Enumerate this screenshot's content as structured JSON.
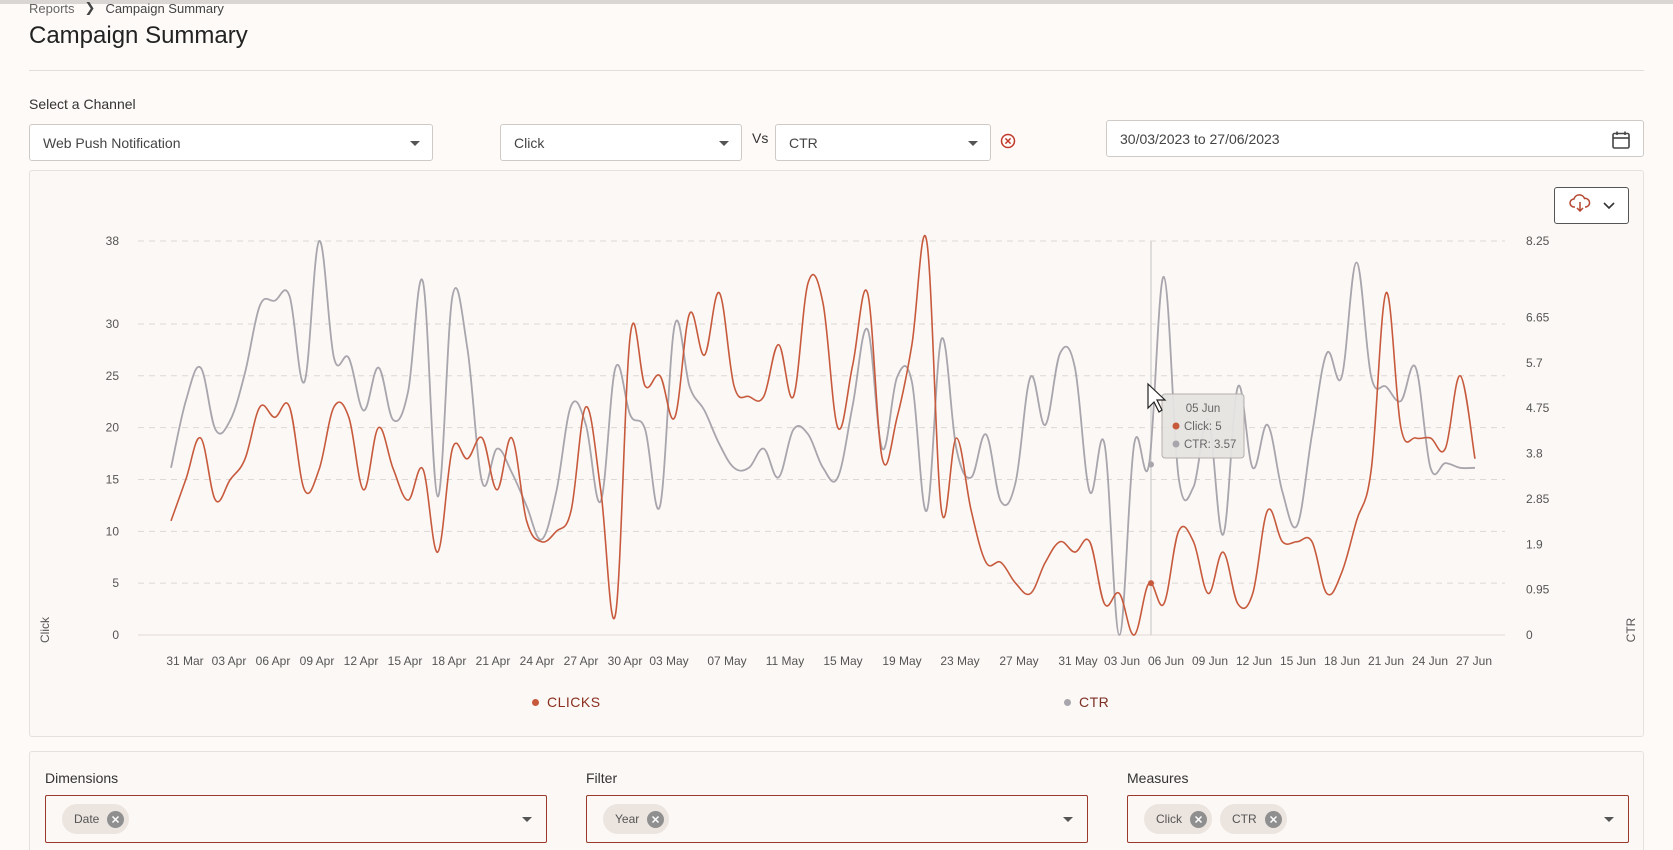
{
  "breadcrumb": {
    "parent": "Reports",
    "separator": "❯",
    "current": "Campaign Summary"
  },
  "page_title": "Campaign Summary",
  "channel": {
    "label": "Select a Channel",
    "value": "Web Push Notification"
  },
  "metric_a": {
    "value": "Click"
  },
  "vs_label": "Vs",
  "metric_b": {
    "value": "CTR"
  },
  "date_range": {
    "value": "30/03/2023 to 27/06/2023"
  },
  "colors": {
    "clicks": "#c75a3d",
    "ctr": "#a8a5ad",
    "accent": "#9a3a2c"
  },
  "icons": {
    "clear": "clear-circle-icon",
    "calendar": "calendar-icon",
    "download": "cloud-download-icon",
    "dropdown": "chevron-down-icon"
  },
  "chart_data": {
    "type": "line",
    "xlabel": "",
    "ylabel": "Click",
    "y2label": "CTR",
    "ylim": [
      0,
      38
    ],
    "y2lim": [
      0,
      8.25
    ],
    "yticks": [
      "0",
      "5",
      "10",
      "15",
      "20",
      "25",
      "30",
      "38"
    ],
    "y2ticks": [
      "0",
      "0.95",
      "1.9",
      "2.85",
      "3.8",
      "4.75",
      "5.7",
      "6.65",
      "8.25"
    ],
    "xticks": [
      "31 Mar",
      "03 Apr",
      "06 Apr",
      "09 Apr",
      "12 Apr",
      "15 Apr",
      "18 Apr",
      "21 Apr",
      "24 Apr",
      "27 Apr",
      "30 Apr",
      "03 May",
      "07 May",
      "11 May",
      "15 May",
      "19 May",
      "23 May",
      "27 May",
      "31 May",
      "03 Jun",
      "06 Jun",
      "09 Jun",
      "12 Jun",
      "15 Jun",
      "18 Jun",
      "21 Jun",
      "24 Jun",
      "27 Jun"
    ],
    "grid": true,
    "legend": "bottom",
    "series": [
      {
        "name": "CLICKS",
        "axis": "left",
        "values": [
          11,
          15,
          19,
          13,
          15,
          17,
          22,
          21,
          22,
          14,
          16,
          22,
          21,
          14,
          20,
          16,
          13,
          16,
          8,
          18,
          17,
          19,
          14,
          19,
          11,
          9,
          10,
          12,
          22,
          14,
          2,
          29,
          24,
          25,
          21,
          31,
          27,
          33,
          24,
          23,
          23,
          28,
          23,
          34,
          32,
          20,
          26,
          33,
          17,
          21,
          28,
          38,
          12,
          19,
          12,
          7,
          7,
          5,
          4,
          7,
          9,
          8,
          9,
          3,
          4,
          0,
          5,
          3,
          10,
          9,
          4,
          8,
          3,
          4,
          12,
          9,
          9,
          9,
          4,
          6,
          11,
          16,
          33,
          20,
          19,
          19,
          18,
          25,
          17
        ]
      },
      {
        "name": "CTR",
        "axis": "right",
        "values": [
          3.5,
          4.9,
          5.6,
          4.3,
          4.5,
          5.5,
          6.9,
          7.0,
          7.1,
          5.3,
          8.25,
          5.8,
          5.8,
          4.7,
          5.6,
          4.5,
          5.1,
          7.4,
          2.9,
          7.1,
          6.0,
          3.2,
          3.9,
          3.4,
          2.7,
          2.0,
          3.0,
          4.8,
          4.4,
          2.8,
          5.6,
          4.6,
          4.3,
          2.7,
          6.5,
          5.2,
          4.7,
          4.0,
          3.5,
          3.5,
          3.9,
          3.3,
          4.3,
          4.2,
          3.5,
          3.3,
          4.8,
          6.4,
          3.9,
          5.4,
          5.3,
          2.6,
          6.2,
          3.9,
          3.3,
          4.2,
          2.8,
          3.2,
          5.4,
          4.4,
          5.9,
          5.6,
          3.0,
          4.0,
          0,
          4.0,
          3.57,
          7.5,
          3.3,
          3.1,
          4.5,
          2.1,
          5.2,
          3.5,
          4.4,
          3.0,
          2.3,
          4.2,
          5.9,
          5.4,
          7.8,
          5.4,
          5.2,
          4.9,
          5.6,
          3.5,
          3.6,
          3.5,
          3.5
        ]
      }
    ],
    "tooltip": {
      "date": "05 Jun",
      "click_label": "Click: 5",
      "ctr_label": "CTR: 3.57"
    }
  },
  "legend": {
    "clicks_label": "CLICKS",
    "ctr_label": "CTR"
  },
  "dimensions": {
    "label": "Dimensions",
    "chips": [
      "Date"
    ]
  },
  "filter": {
    "label": "Filter",
    "chips": [
      "Year"
    ]
  },
  "measures": {
    "label": "Measures",
    "chips": [
      "Click",
      "CTR"
    ]
  }
}
